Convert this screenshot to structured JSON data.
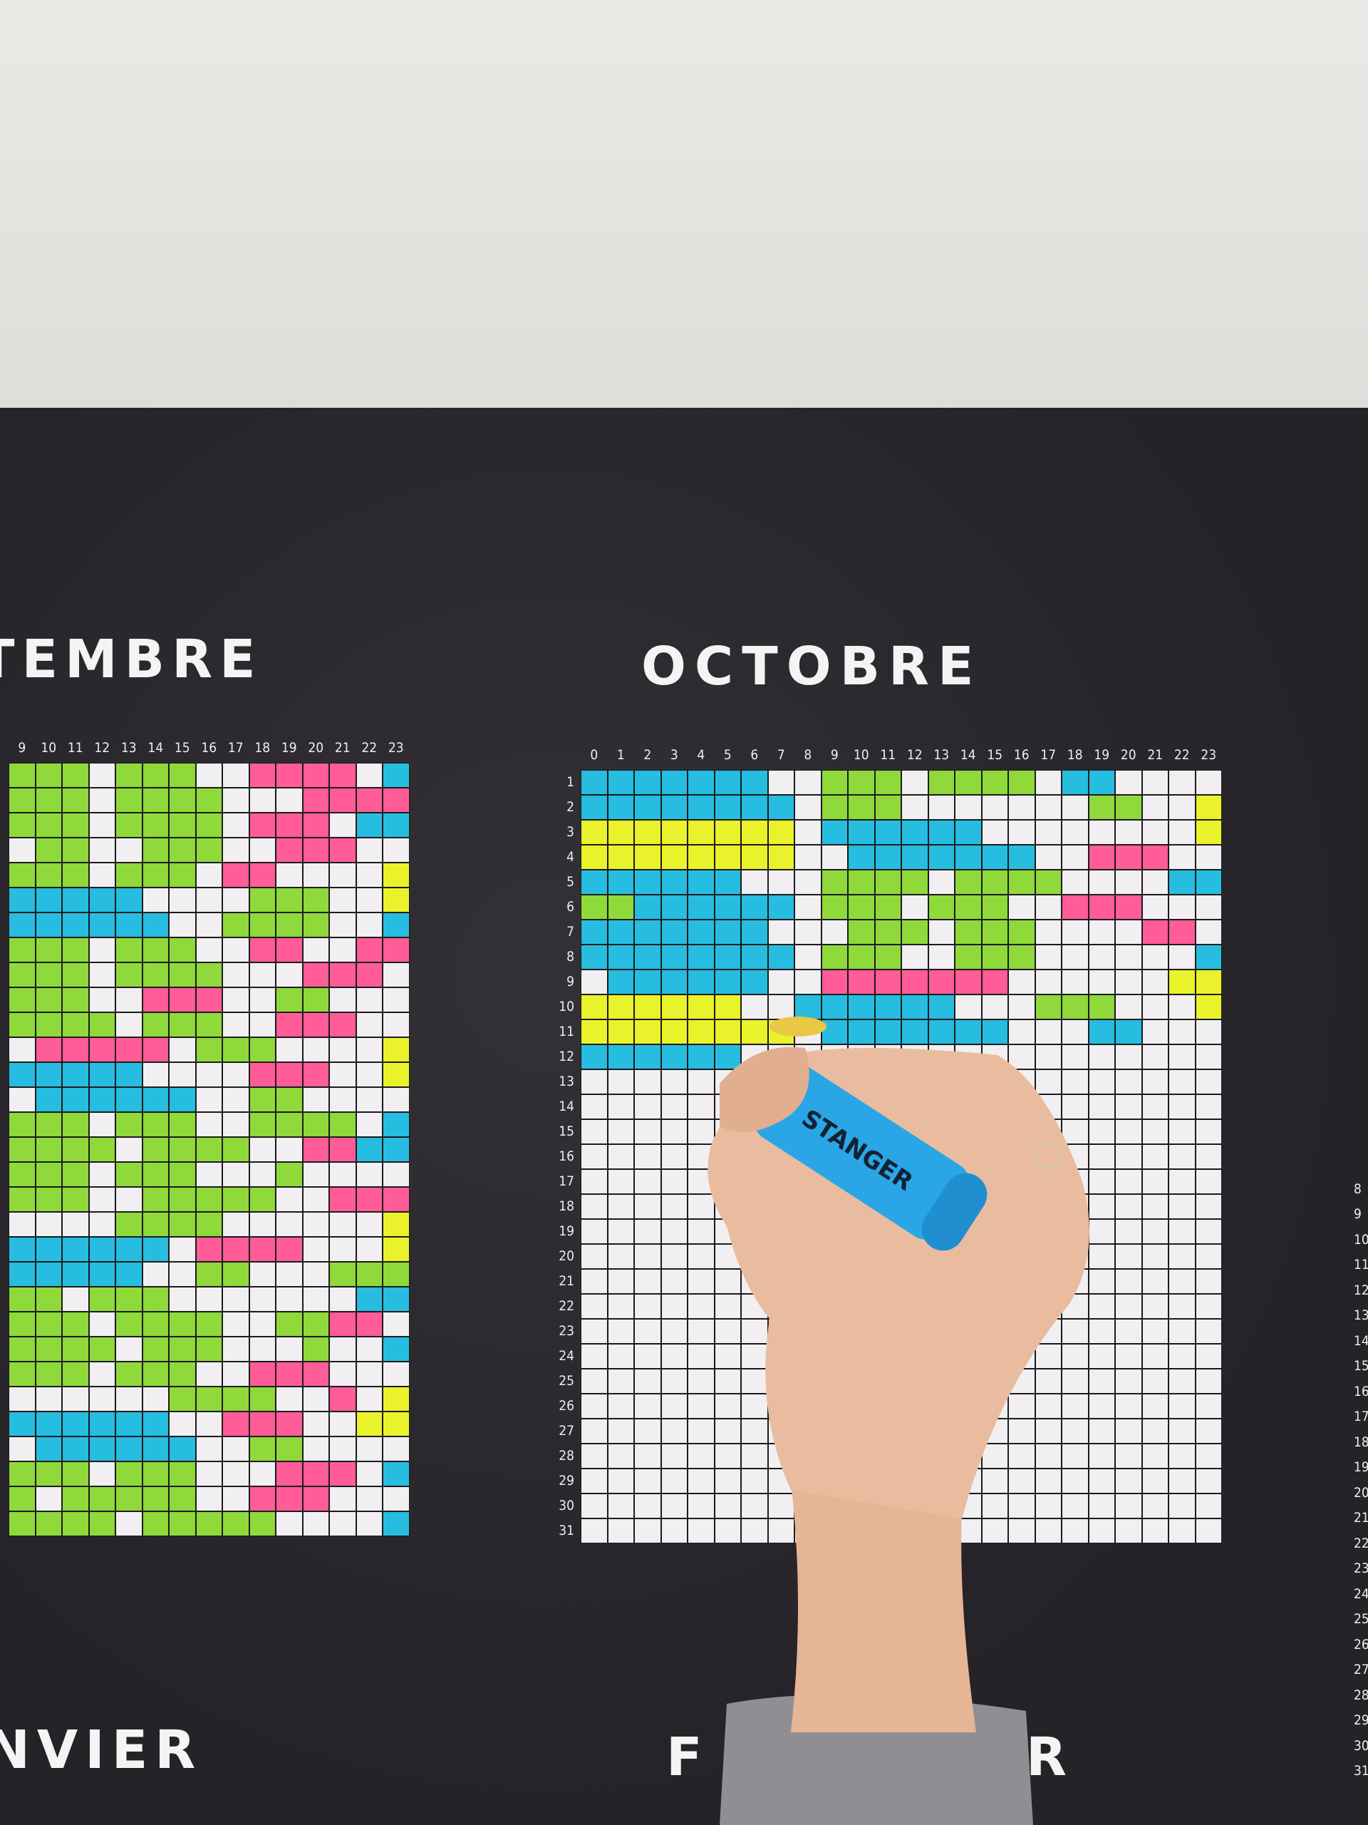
{
  "colors": {
    "B": "#27bde0",
    "G": "#8fd93a",
    "Y": "#e9f22b",
    "P": "#ff5c98",
    ".": "#f1eff1",
    "poster": "#2a282b",
    "wall": "#e4e4e1"
  },
  "months": {
    "september": {
      "title": "TEMBRE",
      "first_col": 9,
      "rows": [
        "GGG.GGG..PPPP.B",
        "GGG.GGGG...PPPP",
        "GGG.GGGG.PPP.BB",
        ".GG..GGG..PPP..",
        "GGG.GGG.PP....Y",
        "BBBBB....GGG..Y",
        "BBBBBB..GGGG..B",
        "GGG.GGG..PP..PP",
        "GGG.GGGG...PPP.",
        "GGG..PPP..GG...",
        "GGGG.GGG..PPP..",
        ".PPPPP.GGG....Y",
        "BBBBB....PPP..Y",
        ".BBBBBB..GG....",
        "GGG.GGG..GGGG.B",
        "GGGG.GGGG..PPBB",
        "GGG.GGG...G....",
        "GGG..GGGGG..PPP",
        "....GGGG......Y",
        "BBBBBB.PPPP...Y",
        "BBBBB..GG...GGG",
        "GG.GGG.......BB",
        "GGG.GGGG..GGPP.",
        "GGGG.GGG...G..B",
        "GGG.GGG..PPP...",
        "......GGGG..P.Y",
        "BBBBBB..PPP..YY",
        ".BBBBBB..GG....",
        "GGG.GGG...PPP.B",
        "G.GGGGG..PPP...",
        "GGGG.GGGGG....B"
      ]
    },
    "october": {
      "title": "OCTOBRE",
      "first_col": 0,
      "rows": [
        "BBBBBBB..GGG.GGGG.BB....",
        "BBBBBBBB.GGG.......GG..Y",
        "YYYYYYYY.BBBBBB........Y",
        "YYYYYYYY..BBBBBBB..PPP..",
        "BBBBBB...GGGG.GGGG....BB",
        "GGBBBBBB.GGG.GGG..PPP...",
        "BBBBBBB...GGG.GGG....PP.",
        "BBBBBBBB.GGG..GGG......B",
        ".BBBBBB..PPPPPPP......YY",
        "YYYYYY..BBBBBB...GGG...Y",
        "YYYYYYYY.BBBBBBB...BB...",
        "BBBBBB..................",
        "........................",
        "........................",
        "........................",
        "........................",
        "........................",
        "........................",
        "........................",
        "........................",
        "........................",
        "........................",
        "........................",
        "........................",
        "........................",
        "........................",
        "........................",
        "........................",
        "........................",
        "........................",
        "........................"
      ]
    },
    "january": {
      "title": "NVIER"
    },
    "february": {
      "title_left": "F",
      "title_right": "R"
    }
  },
  "hours": [
    "0",
    "1",
    "2",
    "3",
    "4",
    "5",
    "6",
    "7",
    "8",
    "9",
    "10",
    "11",
    "12",
    "13",
    "14",
    "15",
    "16",
    "17",
    "18",
    "19",
    "20",
    "21",
    "22",
    "23"
  ],
  "days": [
    "1",
    "2",
    "3",
    "4",
    "5",
    "6",
    "7",
    "8",
    "9",
    "10",
    "11",
    "12",
    "13",
    "14",
    "15",
    "16",
    "17",
    "18",
    "19",
    "20",
    "21",
    "22",
    "23",
    "24",
    "25",
    "26",
    "27",
    "28",
    "29",
    "30",
    "31"
  ],
  "marker": {
    "brand": "STANGER",
    "color": "#2aa6e6"
  }
}
